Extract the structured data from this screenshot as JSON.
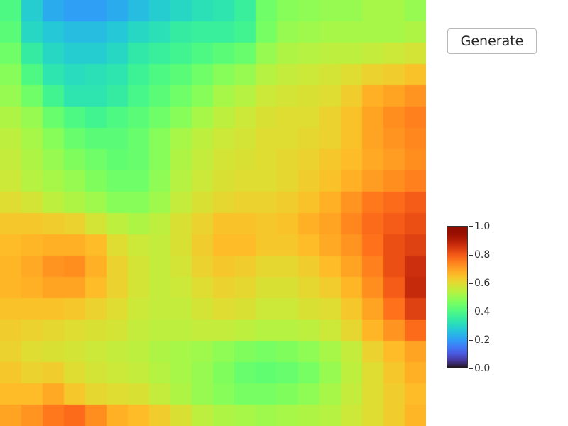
{
  "toolbar": {
    "generate_label": "Generate"
  },
  "colorbar": {
    "colormap": "turbo",
    "ticks": [
      "0.0",
      "0.2",
      "0.4",
      "0.6",
      "0.8",
      "1.0"
    ]
  },
  "chart_data": {
    "type": "heatmap",
    "rows": 20,
    "cols": 20,
    "zlim": [
      0,
      1
    ],
    "colormap": "turbo",
    "values": [
      [
        0.4,
        0.28,
        0.22,
        0.2,
        0.2,
        0.22,
        0.25,
        0.28,
        0.3,
        0.32,
        0.33,
        0.36,
        0.45,
        0.48,
        0.49,
        0.5,
        0.5,
        0.52,
        0.52,
        0.5
      ],
      [
        0.42,
        0.3,
        0.27,
        0.25,
        0.25,
        0.27,
        0.3,
        0.32,
        0.35,
        0.36,
        0.36,
        0.38,
        0.46,
        0.5,
        0.51,
        0.52,
        0.52,
        0.52,
        0.52,
        0.53
      ],
      [
        0.45,
        0.35,
        0.3,
        0.28,
        0.28,
        0.3,
        0.34,
        0.36,
        0.38,
        0.4,
        0.42,
        0.44,
        0.5,
        0.53,
        0.54,
        0.55,
        0.55,
        0.56,
        0.57,
        0.58
      ],
      [
        0.48,
        0.4,
        0.33,
        0.31,
        0.32,
        0.33,
        0.37,
        0.4,
        0.42,
        0.45,
        0.48,
        0.5,
        0.54,
        0.56,
        0.57,
        0.58,
        0.6,
        0.62,
        0.63,
        0.65
      ],
      [
        0.5,
        0.45,
        0.38,
        0.33,
        0.33,
        0.35,
        0.39,
        0.42,
        0.45,
        0.48,
        0.52,
        0.54,
        0.57,
        0.58,
        0.59,
        0.6,
        0.63,
        0.68,
        0.7,
        0.72
      ],
      [
        0.53,
        0.5,
        0.44,
        0.4,
        0.38,
        0.4,
        0.42,
        0.45,
        0.48,
        0.52,
        0.55,
        0.57,
        0.59,
        0.6,
        0.6,
        0.62,
        0.65,
        0.7,
        0.73,
        0.75
      ],
      [
        0.55,
        0.52,
        0.48,
        0.44,
        0.42,
        0.42,
        0.44,
        0.48,
        0.52,
        0.55,
        0.57,
        0.58,
        0.6,
        0.6,
        0.61,
        0.62,
        0.65,
        0.7,
        0.72,
        0.74
      ],
      [
        0.56,
        0.53,
        0.5,
        0.47,
        0.45,
        0.43,
        0.44,
        0.48,
        0.53,
        0.56,
        0.58,
        0.59,
        0.6,
        0.61,
        0.62,
        0.64,
        0.66,
        0.69,
        0.71,
        0.73
      ],
      [
        0.57,
        0.54,
        0.52,
        0.5,
        0.47,
        0.45,
        0.45,
        0.49,
        0.54,
        0.57,
        0.59,
        0.6,
        0.6,
        0.61,
        0.63,
        0.65,
        0.68,
        0.71,
        0.73,
        0.75
      ],
      [
        0.6,
        0.58,
        0.55,
        0.53,
        0.51,
        0.48,
        0.48,
        0.51,
        0.56,
        0.59,
        0.61,
        0.62,
        0.62,
        0.63,
        0.65,
        0.68,
        0.72,
        0.76,
        0.78,
        0.8
      ],
      [
        0.64,
        0.64,
        0.63,
        0.62,
        0.58,
        0.55,
        0.53,
        0.55,
        0.59,
        0.62,
        0.65,
        0.65,
        0.64,
        0.65,
        0.68,
        0.7,
        0.74,
        0.78,
        0.8,
        0.82
      ],
      [
        0.66,
        0.67,
        0.68,
        0.68,
        0.66,
        0.6,
        0.57,
        0.56,
        0.59,
        0.63,
        0.66,
        0.66,
        0.64,
        0.64,
        0.66,
        0.69,
        0.72,
        0.77,
        0.82,
        0.84
      ],
      [
        0.67,
        0.69,
        0.72,
        0.73,
        0.68,
        0.62,
        0.58,
        0.56,
        0.58,
        0.62,
        0.64,
        0.63,
        0.61,
        0.61,
        0.63,
        0.66,
        0.7,
        0.75,
        0.82,
        0.87
      ],
      [
        0.67,
        0.68,
        0.7,
        0.7,
        0.66,
        0.62,
        0.58,
        0.56,
        0.57,
        0.6,
        0.62,
        0.61,
        0.59,
        0.59,
        0.61,
        0.63,
        0.67,
        0.73,
        0.8,
        0.88
      ],
      [
        0.65,
        0.65,
        0.65,
        0.64,
        0.62,
        0.6,
        0.57,
        0.56,
        0.56,
        0.58,
        0.6,
        0.59,
        0.57,
        0.57,
        0.59,
        0.6,
        0.64,
        0.7,
        0.77,
        0.84
      ],
      [
        0.63,
        0.62,
        0.61,
        0.6,
        0.59,
        0.58,
        0.56,
        0.55,
        0.55,
        0.56,
        0.56,
        0.55,
        0.54,
        0.54,
        0.55,
        0.57,
        0.61,
        0.67,
        0.72,
        0.78
      ],
      [
        0.62,
        0.6,
        0.59,
        0.58,
        0.57,
        0.56,
        0.55,
        0.53,
        0.52,
        0.51,
        0.49,
        0.47,
        0.46,
        0.47,
        0.49,
        0.52,
        0.56,
        0.62,
        0.66,
        0.7
      ],
      [
        0.64,
        0.62,
        0.63,
        0.6,
        0.58,
        0.57,
        0.56,
        0.54,
        0.52,
        0.5,
        0.47,
        0.44,
        0.43,
        0.44,
        0.46,
        0.5,
        0.55,
        0.6,
        0.64,
        0.68
      ],
      [
        0.66,
        0.66,
        0.69,
        0.64,
        0.61,
        0.6,
        0.59,
        0.56,
        0.53,
        0.5,
        0.48,
        0.46,
        0.46,
        0.47,
        0.49,
        0.52,
        0.56,
        0.6,
        0.63,
        0.66
      ],
      [
        0.7,
        0.72,
        0.76,
        0.78,
        0.73,
        0.68,
        0.66,
        0.63,
        0.59,
        0.55,
        0.53,
        0.52,
        0.51,
        0.52,
        0.53,
        0.54,
        0.57,
        0.6,
        0.63,
        0.67
      ]
    ]
  }
}
